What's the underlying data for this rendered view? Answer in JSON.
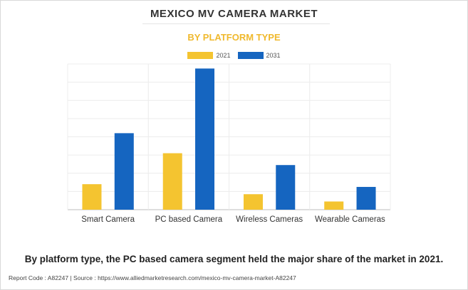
{
  "header": {
    "title": "MEXICO MV CAMERA MARKET",
    "subtitle": "BY PLATFORM TYPE"
  },
  "colors": {
    "series_2021": "#f4c430",
    "series_2031": "#1565c0",
    "subtitle": "#f0b92d"
  },
  "chart_data": {
    "type": "bar",
    "title": "MEXICO MV CAMERA MARKET",
    "subtitle": "BY PLATFORM TYPE",
    "categories": [
      "Smart Camera",
      "PC based Camera",
      "Wireless Cameras",
      "Wearable Cameras"
    ],
    "series": [
      {
        "name": "2021",
        "values": [
          1.4,
          3.1,
          0.85,
          0.45
        ]
      },
      {
        "name": "2031",
        "values": [
          4.2,
          7.75,
          2.45,
          1.25
        ]
      }
    ],
    "ylim": [
      0,
      8
    ],
    "grid": true,
    "legend": "top-center",
    "xlabel": "",
    "ylabel": ""
  },
  "caption": "By platform type, the PC based camera segment held the major share of the market in 2021.",
  "footer": "Report Code : A82247   |   Source : https://www.alliedmarketresearch.com/mexico-mv-camera-market-A82247"
}
